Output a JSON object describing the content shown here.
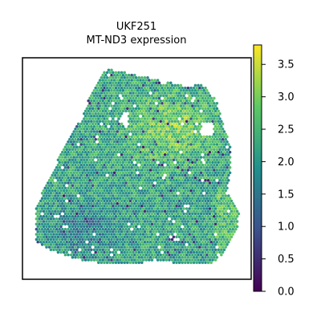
{
  "chart_data": {
    "type": "scatter",
    "title": "UKF251",
    "subtitle": "MT-ND3 expression",
    "xlabel": "",
    "ylabel": "",
    "grid": false,
    "legend": "none",
    "colorbar": {
      "position": "right",
      "colormap": "viridis",
      "range": [
        0.0,
        3.8
      ],
      "ticks": [
        0.0,
        0.5,
        1.0,
        1.5,
        2.0,
        2.5,
        3.0,
        3.5
      ],
      "tick_labels": [
        "0.0",
        "0.5",
        "1.0",
        "1.5",
        "2.0",
        "2.5",
        "3.0",
        "3.5"
      ]
    },
    "distribution": {
      "typical_value": 2.2,
      "high_region_value": 3.0,
      "low_spot_min": 0.3
    }
  },
  "colors": {
    "axis": "#000000",
    "background": "#ffffff",
    "viridis_stops": [
      "#440154",
      "#3b528b",
      "#21908d",
      "#5dc863",
      "#fde725"
    ]
  }
}
